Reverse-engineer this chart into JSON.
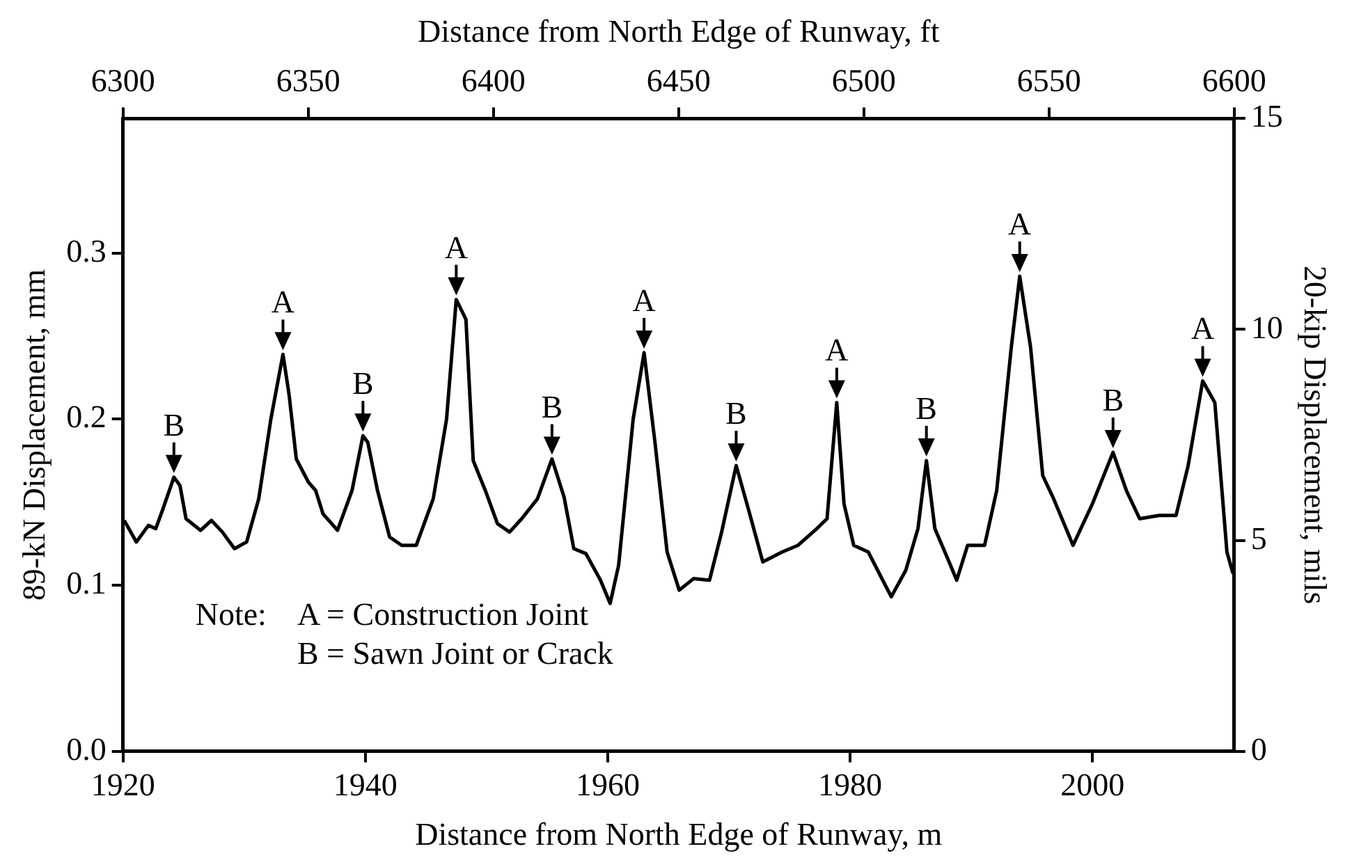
{
  "chart_data": {
    "type": "line",
    "xlabel": "Distance from North Edge of Runway, m",
    "x2label": "Distance from North Edge of Runway, ft",
    "ylabel": "89-kN Displacement, mm",
    "y2label": "20-kip Displacement, mils",
    "xlim": [
      1920,
      2011.7
    ],
    "xticks": [
      1920,
      1940,
      1960,
      1980,
      2000
    ],
    "x2lim": [
      6300,
      6600
    ],
    "x2ticks": [
      6300,
      6350,
      6400,
      6450,
      6500,
      6550,
      6600
    ],
    "ylim": [
      0,
      0.381
    ],
    "yticks": [
      {
        "value": 0,
        "label": "0.0"
      },
      0.1,
      0.2,
      0.3
    ],
    "y2lim": [
      0,
      15
    ],
    "y2ticks": [
      0,
      5,
      10,
      15
    ],
    "grid": false,
    "legend": false,
    "marker": "none",
    "line_style": "solid",
    "series": [
      {
        "color": "#000000",
        "x": [
          1920.1,
          1921.1,
          1922.1,
          1922.7,
          1923.3,
          1924.2,
          1924.7,
          1925.2,
          1926.4,
          1927.3,
          1928.2,
          1929.2,
          1930.2,
          1931.2,
          1932.2,
          1933.2,
          1933.7,
          1934.3,
          1935.3,
          1935.9,
          1936.5,
          1937.7,
          1938.9,
          1939.8,
          1940.2,
          1941.0,
          1942.0,
          1943.0,
          1944.2,
          1945.6,
          1946.7,
          1947.5,
          1948.3,
          1948.9,
          1949.9,
          1950.9,
          1951.9,
          1952.9,
          1954.2,
          1955.4,
          1956.4,
          1957.2,
          1958.2,
          1959.4,
          1960.2,
          1960.9,
          1962.1,
          1963.0,
          1963.9,
          1964.9,
          1965.9,
          1967.1,
          1968.4,
          1969.4,
          1970.6,
          1971.6,
          1972.8,
          1974.4,
          1975.7,
          1977.1,
          1978.1,
          1978.9,
          1979.5,
          1980.3,
          1981.5,
          1983.4,
          1984.6,
          1985.6,
          1986.3,
          1987.0,
          1988.0,
          1988.8,
          1989.7,
          1991.1,
          1992.1,
          1993.3,
          1994.0,
          1994.9,
          1995.9,
          1996.8,
          1998.4,
          2000.0,
          2001.7,
          2002.8,
          2003.9,
          2005.5,
          2006.9,
          2007.9,
          2009.1,
          2010.1,
          2011.1,
          2011.6
        ],
        "values": [
          0.139,
          0.126,
          0.136,
          0.134,
          0.146,
          0.165,
          0.16,
          0.14,
          0.133,
          0.139,
          0.132,
          0.122,
          0.126,
          0.152,
          0.2,
          0.239,
          0.215,
          0.176,
          0.162,
          0.157,
          0.143,
          0.133,
          0.157,
          0.19,
          0.186,
          0.157,
          0.129,
          0.124,
          0.124,
          0.152,
          0.2,
          0.272,
          0.26,
          0.175,
          0.157,
          0.137,
          0.132,
          0.14,
          0.152,
          0.176,
          0.153,
          0.122,
          0.119,
          0.103,
          0.089,
          0.112,
          0.2,
          0.24,
          0.186,
          0.12,
          0.097,
          0.104,
          0.103,
          0.132,
          0.172,
          0.146,
          0.114,
          0.12,
          0.124,
          0.133,
          0.14,
          0.21,
          0.149,
          0.124,
          0.12,
          0.093,
          0.109,
          0.134,
          0.175,
          0.134,
          0.117,
          0.103,
          0.124,
          0.124,
          0.157,
          0.243,
          0.286,
          0.243,
          0.166,
          0.152,
          0.124,
          0.149,
          0.18,
          0.157,
          0.14,
          0.142,
          0.142,
          0.172,
          0.223,
          0.21,
          0.12,
          0.107
        ]
      }
    ],
    "annotations": [
      {
        "text": "B",
        "x": 1924.2,
        "y": 0.165
      },
      {
        "text": "A",
        "x": 1933.2,
        "y": 0.239
      },
      {
        "text": "B",
        "x": 1939.8,
        "y": 0.19
      },
      {
        "text": "A",
        "x": 1947.5,
        "y": 0.272
      },
      {
        "text": "B",
        "x": 1955.4,
        "y": 0.176
      },
      {
        "text": "A",
        "x": 1963.0,
        "y": 0.24
      },
      {
        "text": "B",
        "x": 1970.6,
        "y": 0.172
      },
      {
        "text": "A",
        "x": 1978.9,
        "y": 0.21
      },
      {
        "text": "B",
        "x": 1986.3,
        "y": 0.175
      },
      {
        "text": "A",
        "x": 1994.0,
        "y": 0.286
      },
      {
        "text": "B",
        "x": 2001.7,
        "y": 0.18
      },
      {
        "text": "A",
        "x": 2009.1,
        "y": 0.223
      },
      "Note:",
      "A = Construction Joint",
      "B = Sawn Joint or Crack"
    ]
  }
}
